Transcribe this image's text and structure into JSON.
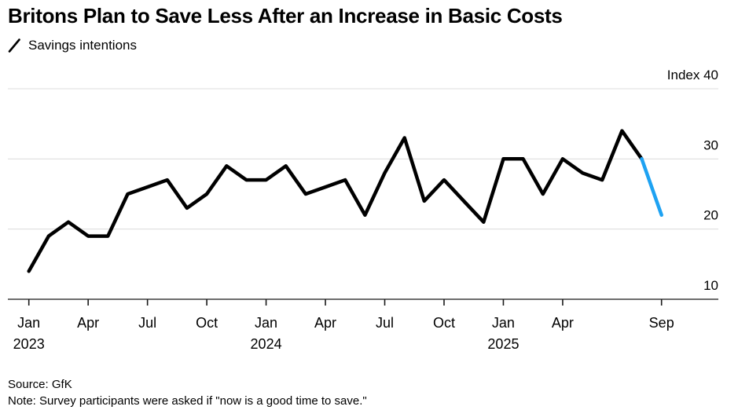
{
  "header": {
    "title": "Britons Plan to Save Less After an Increase in Basic Costs"
  },
  "legend": {
    "label": "Savings intentions",
    "series_color": "#000000"
  },
  "footer": {
    "source": "Source: GfK",
    "note": "Note: Survey participants were asked if \"now is a good time to save.\""
  },
  "chart_data": {
    "type": "line",
    "title": "Britons Plan to Save Less After an Increase in Basic Costs",
    "subtitle": "Savings intentions",
    "unit_label": "Index",
    "ylim": [
      10,
      40
    ],
    "grid": "horizontal",
    "gridline_color": "#dcdcdc",
    "axis_color": "#3d3d3d",
    "text_color": "#000000",
    "x": [
      "2023-01",
      "2023-02",
      "2023-03",
      "2023-04",
      "2023-05",
      "2023-06",
      "2023-07",
      "2023-08",
      "2023-09",
      "2023-10",
      "2023-11",
      "2023-12",
      "2024-01",
      "2024-02",
      "2024-03",
      "2024-04",
      "2024-05",
      "2024-06",
      "2024-07",
      "2024-08",
      "2024-09",
      "2024-10",
      "2024-11",
      "2024-12",
      "2025-01",
      "2025-02",
      "2025-03",
      "2025-04",
      "2025-05",
      "2025-06",
      "2025-07",
      "2025-08",
      "2025-09"
    ],
    "series": [
      {
        "name": "Savings intentions",
        "color": "#000000",
        "values": [
          14,
          19,
          21,
          19,
          19,
          25,
          26,
          27,
          23,
          25,
          29,
          27,
          27,
          29,
          25,
          26,
          27,
          22,
          28,
          33,
          24,
          27,
          24,
          21,
          30,
          30,
          25,
          30,
          28,
          27,
          34,
          30,
          22
        ]
      }
    ],
    "highlight": {
      "description": "final month-over-month segment drawn in blue",
      "color": "#1ea2f2",
      "from_index": 31,
      "to_index": 32
    },
    "y_ticks": [
      {
        "value": 40,
        "label": "Index 40"
      },
      {
        "value": 30,
        "label": "30"
      },
      {
        "value": 20,
        "label": "20"
      },
      {
        "value": 10,
        "label": "10"
      }
    ],
    "x_ticks": [
      {
        "month_index": 0,
        "label": "Jan",
        "year_label": "2023"
      },
      {
        "month_index": 3,
        "label": "Apr"
      },
      {
        "month_index": 6,
        "label": "Jul"
      },
      {
        "month_index": 9,
        "label": "Oct"
      },
      {
        "month_index": 12,
        "label": "Jan",
        "year_label": "2024"
      },
      {
        "month_index": 15,
        "label": "Apr"
      },
      {
        "month_index": 18,
        "label": "Jul"
      },
      {
        "month_index": 21,
        "label": "Oct"
      },
      {
        "month_index": 24,
        "label": "Jan",
        "year_label": "2025"
      },
      {
        "month_index": 27,
        "label": "Apr"
      },
      {
        "month_index": 32,
        "label": "Sep"
      }
    ],
    "legend_position": "top-left",
    "line_width": 4.5
  }
}
